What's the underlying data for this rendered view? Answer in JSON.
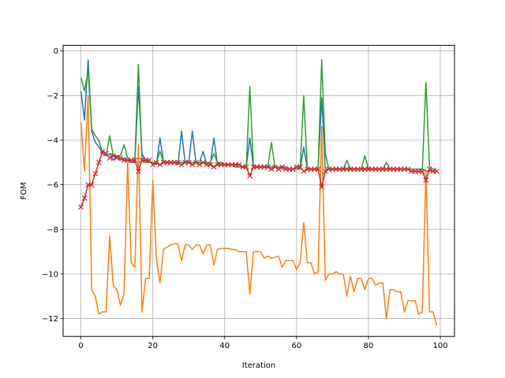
{
  "chart_data": {
    "type": "line",
    "title": "",
    "xlabel": "Iteration",
    "ylabel": "FOM",
    "xlim": [
      -4.95,
      103.95
    ],
    "ylim": [
      -12.8,
      0.25
    ],
    "xticks": [
      0,
      20,
      40,
      60,
      80,
      100
    ],
    "yticks": [
      0,
      -2,
      -4,
      -6,
      -8,
      -10,
      -12
    ],
    "grid": true,
    "legend": "none",
    "series": [
      {
        "color": "#1f77b4",
        "marker": "none",
        "values": [
          -1.8,
          -3.1,
          -0.4,
          -3.6,
          -4.1,
          -4.3,
          -4.6,
          -4.7,
          -4.6,
          -4.9,
          -4.7,
          -4.9,
          -4.8,
          -4.9,
          -5.0,
          -5.0,
          -1.6,
          -4.6,
          -4.9,
          -5.0,
          -5.0,
          -5.1,
          -3.9,
          -5.0,
          -5.0,
          -5.0,
          -5.0,
          -5.1,
          -3.6,
          -5.0,
          -5.0,
          -3.6,
          -5.0,
          -5.0,
          -4.5,
          -5.1,
          -5.1,
          -3.9,
          -5.1,
          -5.1,
          -5.1,
          -5.1,
          -5.1,
          -5.2,
          -5.2,
          -5.2,
          -5.2,
          -3.9,
          -5.2,
          -5.2,
          -5.2,
          -5.2,
          -5.2,
          -5.2,
          -5.2,
          -5.2,
          -5.2,
          -5.2,
          -5.3,
          -5.3,
          -5.3,
          -5.3,
          -4.3,
          -5.3,
          -5.3,
          -5.3,
          -5.3,
          -2.1,
          -5.3,
          -5.3,
          -5.3,
          -5.3,
          -5.3,
          -5.3,
          -5.3,
          -5.3,
          -5.3,
          -5.3,
          -5.3,
          -5.3,
          -5.3,
          -5.3,
          -5.3,
          -5.3,
          -5.3,
          -5.3,
          -5.3,
          -5.3,
          -5.3,
          -5.3,
          -5.3,
          -5.3,
          -5.3,
          -5.3,
          -5.3,
          -5.3,
          -5.4,
          -5.4,
          -5.4,
          -5.4
        ]
      },
      {
        "color": "#ff7f0e",
        "marker": "none",
        "values": [
          -3.2,
          -5.4,
          -2.0,
          -10.7,
          -11.0,
          -11.8,
          -11.7,
          -11.7,
          -8.3,
          -10.5,
          -10.7,
          -11.4,
          -10.9,
          -5.0,
          -9.5,
          -9.7,
          -4.2,
          -11.7,
          -10.2,
          -10.2,
          -5.8,
          -9.3,
          -10.4,
          -8.9,
          -8.8,
          -8.7,
          -8.65,
          -8.65,
          -9.4,
          -8.7,
          -8.7,
          -8.9,
          -8.7,
          -8.7,
          -9.1,
          -8.7,
          -8.7,
          -9.6,
          -8.9,
          -8.85,
          -8.85,
          -8.85,
          -8.9,
          -8.9,
          -9.0,
          -9.0,
          -9.0,
          -10.9,
          -9.0,
          -9.0,
          -9.0,
          -9.3,
          -9.2,
          -9.3,
          -9.25,
          -9.2,
          -9.7,
          -9.4,
          -9.4,
          -9.4,
          -9.8,
          -9.5,
          -7.7,
          -9.5,
          -9.5,
          -10.0,
          -9.9,
          -3.4,
          -10.3,
          -10.0,
          -10.0,
          -9.9,
          -10.0,
          -10.0,
          -11.0,
          -10.1,
          -10.8,
          -10.2,
          -10.2,
          -10.7,
          -10.2,
          -10.2,
          -10.5,
          -10.4,
          -10.4,
          -12.0,
          -10.7,
          -10.7,
          -10.8,
          -10.8,
          -11.7,
          -11.2,
          -11.2,
          -11.2,
          -11.8,
          -11.7,
          -5.3,
          -11.7,
          -11.7,
          -12.3
        ]
      },
      {
        "color": "#2ca02c",
        "marker": "none",
        "values": [
          -1.2,
          -1.8,
          -0.9,
          -3.5,
          -3.8,
          -4.0,
          -4.6,
          -4.7,
          -3.8,
          -4.7,
          -4.7,
          -4.7,
          -4.2,
          -4.8,
          -4.9,
          -4.9,
          -0.6,
          -4.9,
          -5.0,
          -5.0,
          -5.0,
          -5.0,
          -4.5,
          -5.0,
          -5.0,
          -5.0,
          -5.0,
          -5.0,
          -5.0,
          -5.0,
          -5.0,
          -5.0,
          -5.0,
          -5.0,
          -5.0,
          -5.0,
          -5.0,
          -4.6,
          -5.0,
          -5.0,
          -5.1,
          -5.1,
          -5.1,
          -5.1,
          -5.1,
          -5.2,
          -5.2,
          -1.6,
          -5.2,
          -5.2,
          -5.2,
          -5.2,
          -5.2,
          -4.1,
          -5.2,
          -5.2,
          -5.3,
          -5.3,
          -5.3,
          -5.3,
          -5.3,
          -5.3,
          -2.0,
          -5.3,
          -5.3,
          -5.3,
          -5.3,
          -0.4,
          -4.6,
          -5.3,
          -5.3,
          -5.3,
          -5.3,
          -5.3,
          -4.9,
          -5.3,
          -5.3,
          -5.3,
          -5.3,
          -4.7,
          -5.3,
          -5.3,
          -5.3,
          -5.3,
          -5.3,
          -5.0,
          -5.3,
          -5.3,
          -5.3,
          -5.3,
          -5.3,
          -5.3,
          -5.3,
          -5.3,
          -5.3,
          -5.3,
          -1.4,
          -5.2,
          -5.3,
          -5.3
        ]
      },
      {
        "color": "#d62728",
        "marker": "x",
        "values": [
          -7.0,
          -6.6,
          -6.0,
          -6.0,
          -5.5,
          -5.0,
          -4.5,
          -4.6,
          -4.8,
          -4.7,
          -4.8,
          -4.8,
          -4.9,
          -4.9,
          -4.9,
          -4.9,
          -5.4,
          -4.9,
          -4.9,
          -4.9,
          -5.1,
          -5.0,
          -5.1,
          -5.0,
          -5.0,
          -5.0,
          -5.0,
          -5.0,
          -5.1,
          -5.0,
          -5.0,
          -5.1,
          -5.0,
          -5.1,
          -5.0,
          -5.1,
          -5.1,
          -5.2,
          -5.1,
          -5.1,
          -5.1,
          -5.1,
          -5.1,
          -5.1,
          -5.1,
          -5.2,
          -5.2,
          -5.6,
          -5.2,
          -5.2,
          -5.2,
          -5.2,
          -5.2,
          -5.3,
          -5.2,
          -5.3,
          -5.2,
          -5.3,
          -5.3,
          -5.3,
          -5.2,
          -5.2,
          -5.4,
          -5.3,
          -5.3,
          -5.3,
          -5.3,
          -6.1,
          -5.4,
          -5.3,
          -5.3,
          -5.3,
          -5.3,
          -5.3,
          -5.3,
          -5.3,
          -5.3,
          -5.3,
          -5.3,
          -5.3,
          -5.3,
          -5.3,
          -5.3,
          -5.3,
          -5.3,
          -5.3,
          -5.3,
          -5.3,
          -5.3,
          -5.3,
          -5.3,
          -5.3,
          -5.4,
          -5.4,
          -5.4,
          -5.4,
          -5.8,
          -5.3,
          -5.4,
          -5.4
        ]
      }
    ]
  }
}
